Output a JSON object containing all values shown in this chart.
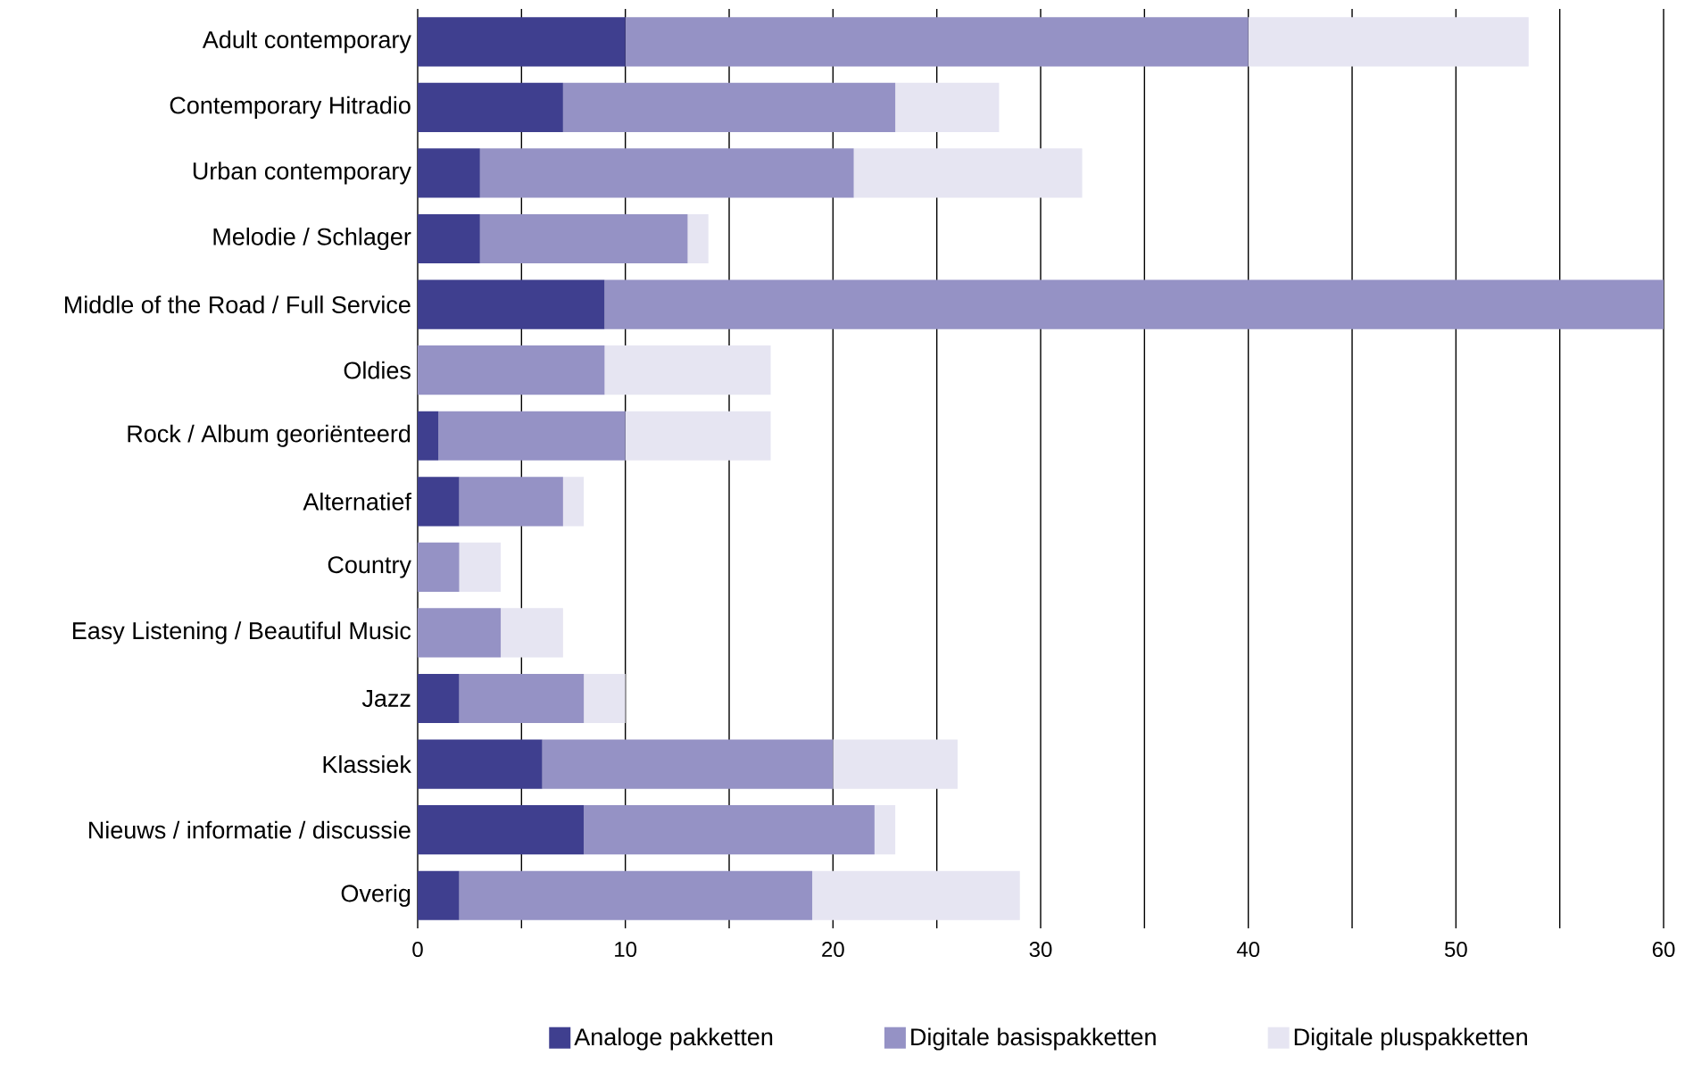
{
  "chart_data": {
    "type": "bar",
    "orientation": "horizontal",
    "stacked": true,
    "categories": [
      "Adult contemporary",
      "Contemporary Hitradio",
      "Urban contemporary",
      "Melodie / Schlager",
      "Middle of the Road / Full Service",
      "Oldies",
      "Rock / Album georiënteerd",
      "Alternatief",
      "Country",
      "Easy Listening / Beautiful Music",
      "Jazz",
      "Klassiek",
      "Nieuws / informatie / discussie",
      "Overig"
    ],
    "series": [
      {
        "name": "Analoge pakketten",
        "color": "#3f3f8f",
        "values": [
          10,
          7,
          3,
          3,
          9,
          0,
          1,
          2,
          0,
          0,
          2,
          6,
          8,
          2
        ]
      },
      {
        "name": "Digitale basispakketten",
        "color": "#9592c5",
        "values": [
          30,
          16,
          18,
          10,
          51,
          9,
          9,
          5,
          2,
          4,
          6,
          14,
          14,
          17
        ]
      },
      {
        "name": "Digitale pluspakketten",
        "color": "#e6e5f2",
        "values": [
          13.5,
          5,
          11,
          1,
          0,
          8,
          7,
          1,
          2,
          3,
          2,
          6,
          1,
          10
        ]
      }
    ],
    "xlim": [
      0,
      60
    ],
    "xticks": [
      0,
      {
        "value": 5,
        "label": null
      },
      10,
      {
        "value": 15,
        "label": null
      },
      20,
      {
        "value": 25,
        "label": null
      },
      30,
      {
        "value": 35,
        "label": null
      },
      40,
      {
        "value": 45,
        "label": null
      },
      50,
      {
        "value": 55,
        "label": null
      },
      60
    ],
    "grid": "x",
    "legend": "bottom"
  }
}
